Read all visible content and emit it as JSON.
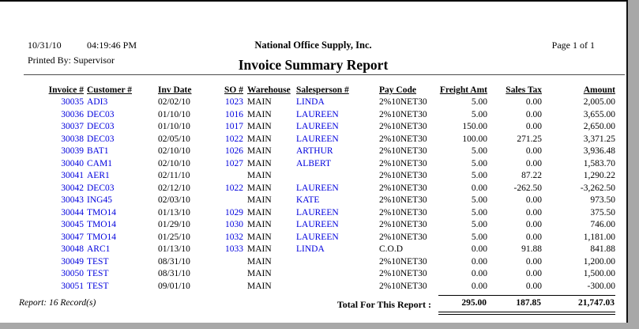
{
  "header": {
    "date": "10/31/10",
    "time": "04:19:46 PM",
    "printed_by": "Printed By: Supervisor",
    "company": "National Office Supply, Inc.",
    "page_label": "Page 1 of 1",
    "title": "Invoice Summary Report"
  },
  "table": {
    "headers": [
      "Invoice #",
      "Customer #",
      "Inv Date",
      "SO #",
      "Warehouse",
      "Salesperson #",
      "Pay Code",
      "Freight Amt",
      "Sales Tax",
      "Amount"
    ],
    "rows": [
      [
        "30035",
        "ADI3",
        "02/02/10",
        "1023",
        "MAIN",
        "LINDA",
        "2%10NET30",
        "5.00",
        "0.00",
        "2,005.00"
      ],
      [
        "30036",
        "DEC03",
        "01/10/10",
        "1016",
        "MAIN",
        "LAUREEN",
        "2%10NET30",
        "5.00",
        "0.00",
        "3,655.00"
      ],
      [
        "30037",
        "DEC03",
        "01/10/10",
        "1017",
        "MAIN",
        "LAUREEN",
        "2%10NET30",
        "150.00",
        "0.00",
        "2,650.00"
      ],
      [
        "30038",
        "DEC03",
        "02/05/10",
        "1022",
        "MAIN",
        "LAUREEN",
        "2%10NET30",
        "100.00",
        "271.25",
        "3,371.25"
      ],
      [
        "30039",
        "BAT1",
        "02/10/10",
        "1026",
        "MAIN",
        "ARTHUR",
        "2%10NET30",
        "5.00",
        "0.00",
        "3,936.48"
      ],
      [
        "30040",
        "CAM1",
        "02/10/10",
        "1027",
        "MAIN",
        "ALBERT",
        "2%10NET30",
        "5.00",
        "0.00",
        "1,583.70"
      ],
      [
        "30041",
        "AER1",
        "02/11/10",
        "",
        "MAIN",
        "",
        "2%10NET30",
        "5.00",
        "87.22",
        "1,290.22"
      ],
      [
        "30042",
        "DEC03",
        "02/12/10",
        "1022",
        "MAIN",
        "LAUREEN",
        "2%10NET30",
        "0.00",
        "-262.50",
        "-3,262.50"
      ],
      [
        "30043",
        "ING45",
        "02/03/10",
        "",
        "MAIN",
        "KATE",
        "2%10NET30",
        "5.00",
        "0.00",
        "973.50"
      ],
      [
        "30044",
        "TMO14",
        "01/13/10",
        "1029",
        "MAIN",
        "LAUREEN",
        "2%10NET30",
        "5.00",
        "0.00",
        "375.50"
      ],
      [
        "30045",
        "TMO14",
        "01/29/10",
        "1030",
        "MAIN",
        "LAUREEN",
        "2%10NET30",
        "5.00",
        "0.00",
        "746.00"
      ],
      [
        "30047",
        "TMO14",
        "01/25/10",
        "1032",
        "MAIN",
        "LAUREEN",
        "2%10NET30",
        "5.00",
        "0.00",
        "1,181.00"
      ],
      [
        "30048",
        "ARC1",
        "01/13/10",
        "1033",
        "MAIN",
        "LINDA",
        "C.O.D",
        "0.00",
        "91.88",
        "841.88"
      ],
      [
        "30049",
        "TEST",
        "08/31/10",
        "",
        "MAIN",
        "",
        "2%10NET30",
        "0.00",
        "0.00",
        "1,200.00"
      ],
      [
        "30050",
        "TEST",
        "08/31/10",
        "",
        "MAIN",
        "",
        "2%10NET30",
        "0.00",
        "0.00",
        "1,500.00"
      ],
      [
        "30051",
        "TEST",
        "09/01/10",
        "",
        "MAIN",
        "",
        "2%10NET30",
        "0.00",
        "0.00",
        "-300.00"
      ]
    ],
    "footer": {
      "record_count": "Report: 16 Record(s)",
      "total_label": "Total For This Report :",
      "total_freight": "295.00",
      "total_sales_tax": "187.85",
      "total_amount": "21,747.03"
    }
  },
  "colors": {
    "link_blue": "#0000dd",
    "text_black": "#000000",
    "page_white": "#ffffff",
    "backdrop_gray": "#a8a8a8"
  }
}
